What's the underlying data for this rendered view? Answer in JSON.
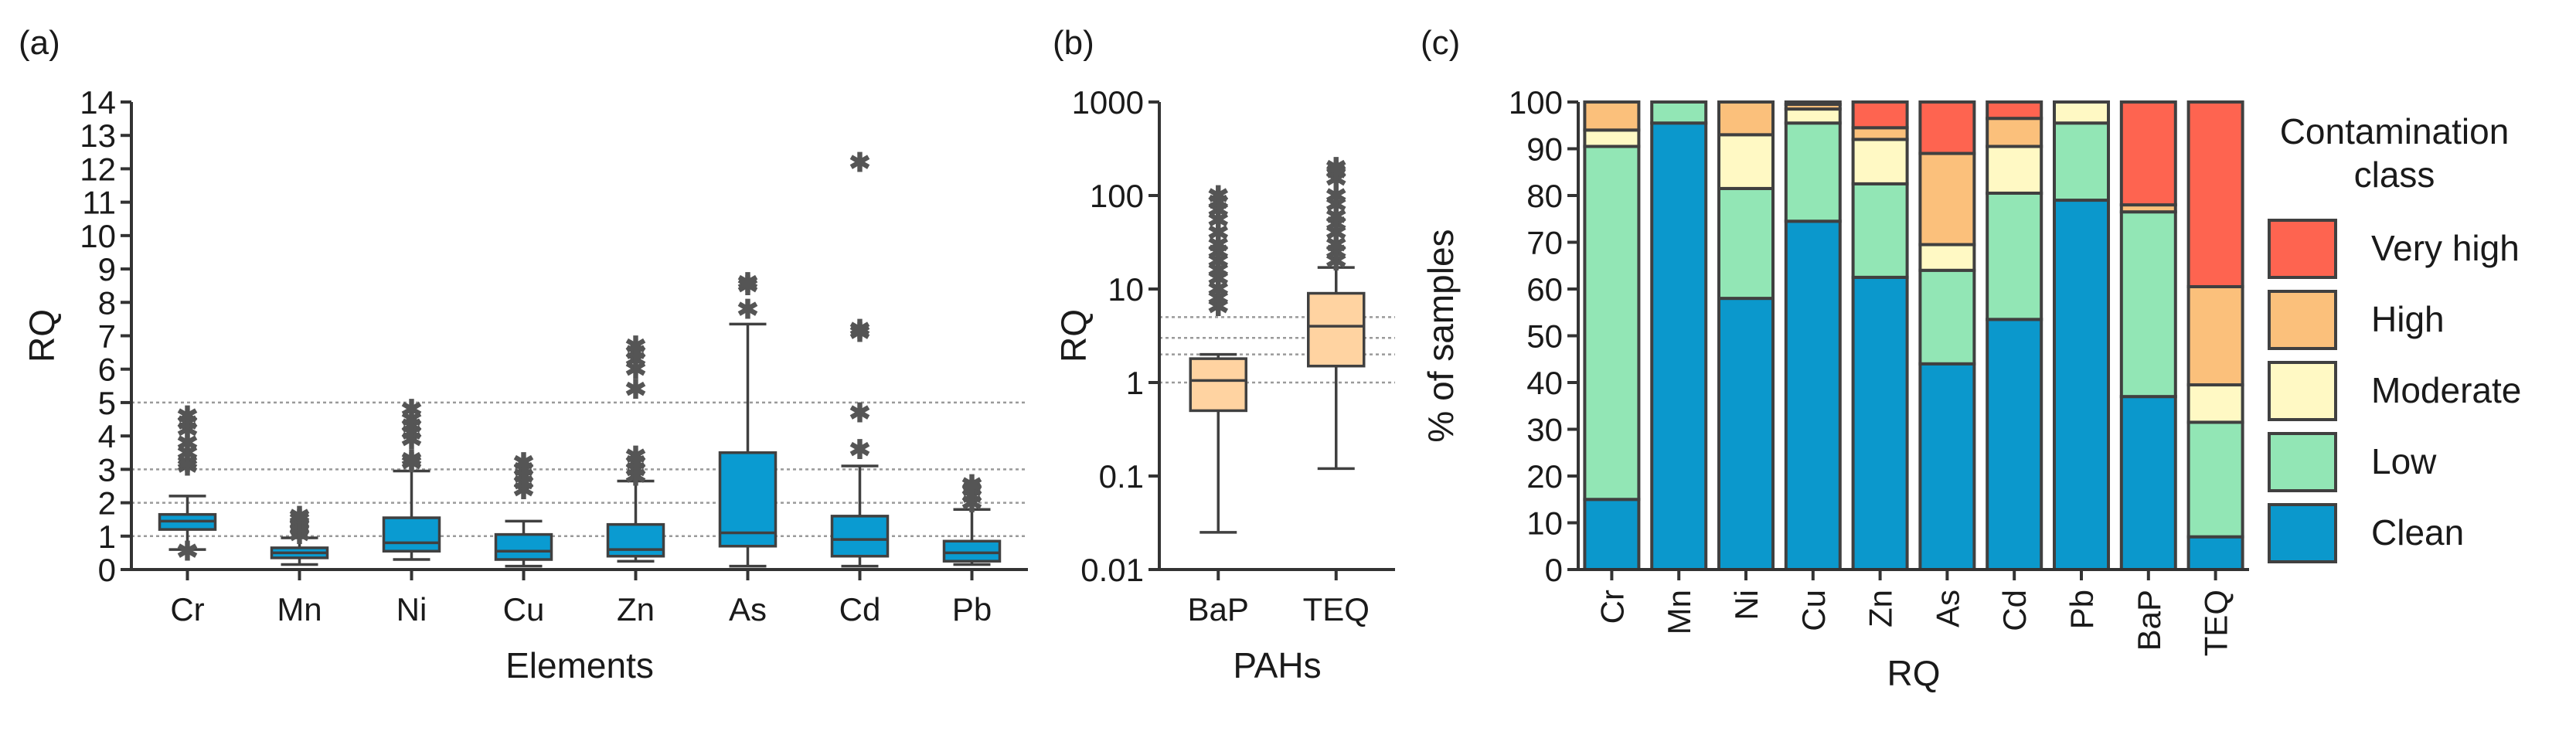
{
  "colors": {
    "metal_box": "#0a9bd1",
    "pah_box": "#ffd3a1",
    "clean": "#0b98cc",
    "low": "#92e6b5",
    "moderate": "#fff9c4",
    "high": "#fbc07b",
    "very_high": "#fe6450",
    "outlier": "#555555"
  },
  "chart_data": [
    {
      "panel_label": "(a)",
      "type": "box",
      "xlabel": "Elements",
      "ylabel": "RQ",
      "ylim": [
        0,
        14
      ],
      "yticks": [
        "0",
        "1",
        "2",
        "3",
        "4",
        "5",
        "6",
        "7",
        "8",
        "9",
        "10",
        "11",
        "12",
        "13",
        "14"
      ],
      "reference_lines": [
        1,
        2,
        3,
        5
      ],
      "categories": [
        "Cr",
        "Mn",
        "Ni",
        "Cu",
        "Zn",
        "As",
        "Cd",
        "Pb"
      ],
      "boxes": [
        {
          "min": 0.6,
          "q1": 1.2,
          "median": 1.45,
          "q3": 1.65,
          "max": 2.2,
          "outliers": [
            0.55,
            3.1,
            3.2,
            3.5,
            3.8,
            4.2,
            4.4,
            4.6
          ]
        },
        {
          "min": 0.15,
          "q1": 0.35,
          "median": 0.5,
          "q3": 0.65,
          "max": 0.95,
          "outliers": [
            1.05,
            1.2,
            1.35,
            1.5,
            1.6
          ]
        },
        {
          "min": 0.3,
          "q1": 0.55,
          "median": 0.8,
          "q3": 1.55,
          "max": 2.95,
          "outliers": [
            3.2,
            3.3,
            3.9,
            4.1,
            4.3,
            4.5,
            4.8
          ]
        },
        {
          "min": 0.1,
          "q1": 0.3,
          "median": 0.55,
          "q3": 1.05,
          "max": 1.45,
          "outliers": [
            2.4,
            2.6,
            2.8,
            3.0,
            3.2
          ]
        },
        {
          "min": 0.25,
          "q1": 0.4,
          "median": 0.6,
          "q3": 1.35,
          "max": 2.65,
          "outliers": [
            2.8,
            3.0,
            3.2,
            3.4,
            5.4,
            6.0,
            6.3,
            6.5,
            6.7
          ]
        },
        {
          "min": 0.1,
          "q1": 0.7,
          "median": 1.1,
          "q3": 3.5,
          "max": 7.35,
          "outliers": [
            7.8,
            8.5,
            8.6
          ]
        },
        {
          "min": 0.1,
          "q1": 0.4,
          "median": 0.9,
          "q3": 1.6,
          "max": 3.1,
          "outliers": [
            3.6,
            4.7,
            7.1,
            7.2,
            12.2
          ]
        },
        {
          "min": 0.15,
          "q1": 0.25,
          "median": 0.5,
          "q3": 0.85,
          "max": 1.8,
          "outliers": [
            2.0,
            2.2,
            2.4,
            2.55
          ]
        }
      ]
    },
    {
      "panel_label": "(b)",
      "type": "box",
      "scale": "log",
      "xlabel": "PAHs",
      "ylabel": "RQ",
      "ylim": [
        0.01,
        1000
      ],
      "yticks": [
        "0.01",
        "0.1",
        "1",
        "10",
        "100",
        "1000"
      ],
      "reference_lines": [
        1,
        2,
        3,
        5
      ],
      "categories": [
        "BaP",
        "TEQ"
      ],
      "boxes": [
        {
          "min": 0.025,
          "q1": 0.5,
          "median": 1.05,
          "q3": 1.8,
          "max": 2.0,
          "outliers": [
            6.5,
            8,
            10,
            13,
            16,
            20,
            25,
            30,
            40,
            55,
            70,
            85,
            100
          ]
        },
        {
          "min": 0.12,
          "q1": 1.5,
          "median": 4.0,
          "q3": 9.0,
          "max": 17.0,
          "outliers": [
            20,
            25,
            30,
            40,
            50,
            60,
            80,
            100,
            150,
            180,
            200
          ]
        }
      ]
    },
    {
      "panel_label": "(c)",
      "type": "stacked_bar",
      "xlabel": "RQ",
      "ylabel": "% of samples",
      "ylim": [
        0,
        100
      ],
      "yticks": [
        "0",
        "10",
        "20",
        "30",
        "40",
        "50",
        "60",
        "70",
        "80",
        "90",
        "100"
      ],
      "categories": [
        "Cr",
        "Mn",
        "Ni",
        "Cu",
        "Zn",
        "As",
        "Cd",
        "Pb",
        "BaP",
        "TEQ"
      ],
      "legend_title_lines": [
        "Contamination",
        "class"
      ],
      "legend_position": "right",
      "series": [
        {
          "name": "Clean",
          "values": [
            15,
            95.5,
            58,
            74.5,
            62.5,
            44,
            53.5,
            79,
            37,
            7
          ]
        },
        {
          "name": "Low",
          "values": [
            75.5,
            4.5,
            23.5,
            21,
            20,
            20,
            27,
            16.5,
            39.5,
            24.5
          ]
        },
        {
          "name": "Moderate",
          "values": [
            3.5,
            0,
            11.5,
            3,
            9.5,
            5.5,
            10,
            4.5,
            0,
            8
          ]
        },
        {
          "name": "High",
          "values": [
            6,
            0,
            7,
            1,
            2.5,
            19.5,
            6,
            0,
            1.5,
            21
          ]
        },
        {
          "name": "Very high",
          "values": [
            0,
            0,
            0,
            0.5,
            5.5,
            11,
            3.5,
            0,
            22,
            39.5
          ]
        }
      ]
    }
  ]
}
